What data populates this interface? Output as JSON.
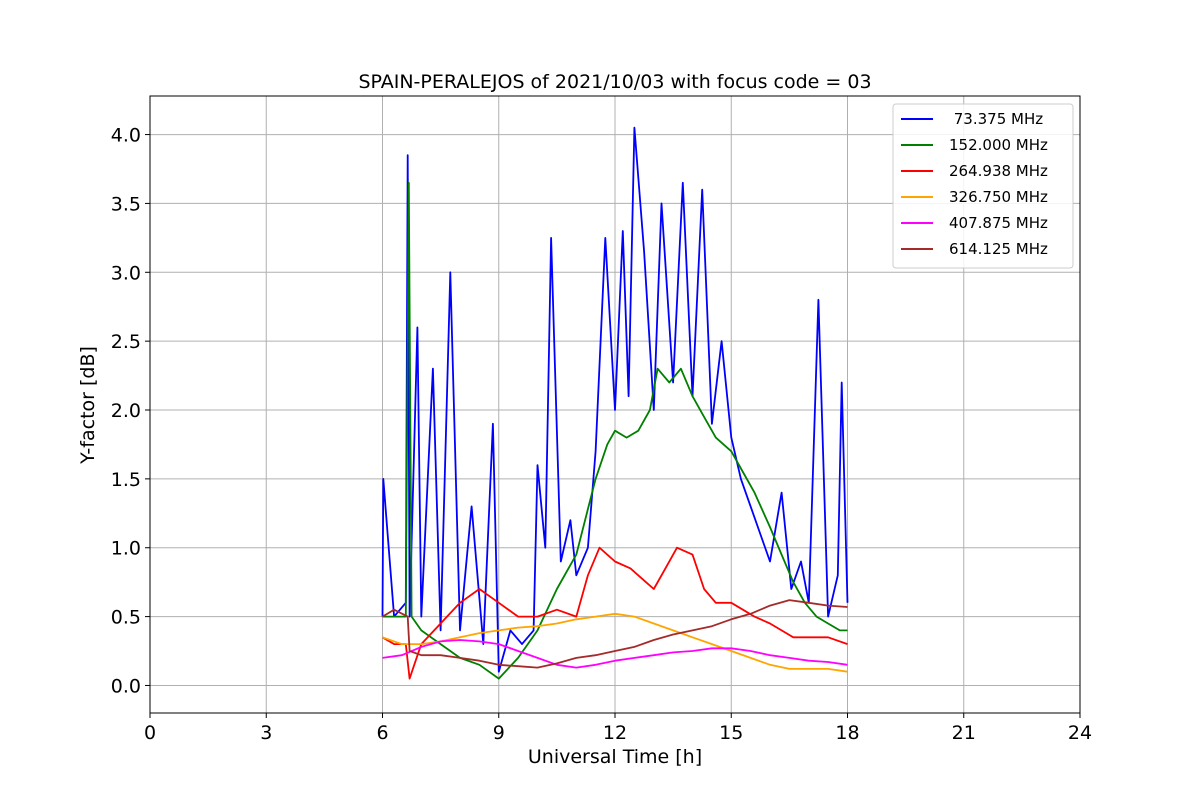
{
  "chart_data": {
    "type": "line",
    "title": "SPAIN-PERALEJOS of 2021/10/03 with focus code = 03",
    "xlabel": "Universal Time [h]",
    "ylabel": "Y-factor [dB]",
    "xlim": [
      0,
      24
    ],
    "ylim": [
      -0.2,
      4.28
    ],
    "xticks": [
      0,
      3,
      6,
      9,
      12,
      15,
      18,
      21,
      24
    ],
    "xtick_labels": [
      "0",
      "3",
      "6",
      "9",
      "12",
      "15",
      "18",
      "21",
      "24"
    ],
    "yticks": [
      0.0,
      0.5,
      1.0,
      1.5,
      2.0,
      2.5,
      3.0,
      3.5,
      4.0
    ],
    "ytick_labels": [
      "0.0",
      "0.5",
      "1.0",
      "1.5",
      "2.0",
      "2.5",
      "3.0",
      "3.5",
      "4.0"
    ],
    "grid": true,
    "legend_position": "top-right",
    "series": [
      {
        "name": " 73.375 MHz",
        "color": "#0000ff",
        "x": [
          6.0,
          6.02,
          6.3,
          6.6,
          6.65,
          6.7,
          6.9,
          7.0,
          7.3,
          7.5,
          7.75,
          8.0,
          8.3,
          8.6,
          8.85,
          9.0,
          9.3,
          9.6,
          9.9,
          10.0,
          10.2,
          10.35,
          10.6,
          10.85,
          11.0,
          11.3,
          11.5,
          11.75,
          12.0,
          12.2,
          12.35,
          12.5,
          12.75,
          13.0,
          13.2,
          13.5,
          13.75,
          14.0,
          14.25,
          14.5,
          14.75,
          15.0,
          15.25,
          15.5,
          15.75,
          16.0,
          16.3,
          16.55,
          16.8,
          17.0,
          17.25,
          17.5,
          17.75,
          17.85,
          18.0
        ],
        "y": [
          0.5,
          1.5,
          0.5,
          0.6,
          3.85,
          0.5,
          2.6,
          0.5,
          2.3,
          0.4,
          3.0,
          0.4,
          1.3,
          0.3,
          1.9,
          0.1,
          0.4,
          0.3,
          0.4,
          1.6,
          1.0,
          3.25,
          0.9,
          1.2,
          0.8,
          1.0,
          1.7,
          3.25,
          2.0,
          3.3,
          2.1,
          4.05,
          3.15,
          2.0,
          3.5,
          2.2,
          3.65,
          2.1,
          3.6,
          1.9,
          2.5,
          1.8,
          1.5,
          1.3,
          1.1,
          0.9,
          1.4,
          0.7,
          0.9,
          0.6,
          2.8,
          0.5,
          0.8,
          2.2,
          0.6
        ]
      },
      {
        "name": "152.000 MHz",
        "color": "#008000",
        "x": [
          6.0,
          6.3,
          6.6,
          6.68,
          6.75,
          7.0,
          7.5,
          8.0,
          8.5,
          9.0,
          9.5,
          10.0,
          10.5,
          11.0,
          11.5,
          11.8,
          12.0,
          12.3,
          12.6,
          12.9,
          13.1,
          13.4,
          13.7,
          14.0,
          14.3,
          14.6,
          15.0,
          15.3,
          15.6,
          16.0,
          16.3,
          16.6,
          16.9,
          17.2,
          17.5,
          17.8,
          18.0
        ],
        "y": [
          0.5,
          0.5,
          0.5,
          3.65,
          0.5,
          0.4,
          0.3,
          0.2,
          0.15,
          0.05,
          0.2,
          0.4,
          0.7,
          0.95,
          1.5,
          1.75,
          1.85,
          1.8,
          1.85,
          2.0,
          2.3,
          2.2,
          2.3,
          2.1,
          1.95,
          1.8,
          1.7,
          1.55,
          1.4,
          1.15,
          0.95,
          0.75,
          0.6,
          0.5,
          0.45,
          0.4,
          0.4
        ]
      },
      {
        "name": "264.938 MHz",
        "color": "#ff0000",
        "x": [
          6.0,
          6.3,
          6.6,
          6.7,
          7.0,
          7.5,
          8.0,
          8.5,
          9.0,
          9.5,
          10.0,
          10.5,
          11.0,
          11.3,
          11.6,
          12.0,
          12.4,
          12.8,
          13.0,
          13.3,
          13.6,
          14.0,
          14.3,
          14.6,
          15.0,
          15.3,
          15.6,
          16.0,
          16.3,
          16.6,
          17.0,
          17.5,
          18.0
        ],
        "y": [
          0.35,
          0.3,
          0.3,
          0.05,
          0.3,
          0.45,
          0.6,
          0.7,
          0.6,
          0.5,
          0.5,
          0.55,
          0.5,
          0.8,
          1.0,
          0.9,
          0.85,
          0.75,
          0.7,
          0.85,
          1.0,
          0.95,
          0.7,
          0.6,
          0.6,
          0.55,
          0.5,
          0.45,
          0.4,
          0.35,
          0.35,
          0.35,
          0.3
        ]
      },
      {
        "name": "326.750 MHz",
        "color": "#ffa500",
        "x": [
          6.0,
          6.5,
          7.0,
          7.5,
          8.0,
          8.5,
          9.0,
          9.5,
          10.0,
          10.5,
          11.0,
          11.5,
          12.0,
          12.5,
          13.0,
          13.5,
          14.0,
          14.5,
          15.0,
          15.5,
          16.0,
          16.5,
          17.0,
          17.5,
          18.0
        ],
        "y": [
          0.35,
          0.3,
          0.3,
          0.32,
          0.35,
          0.38,
          0.4,
          0.42,
          0.43,
          0.45,
          0.48,
          0.5,
          0.52,
          0.5,
          0.45,
          0.4,
          0.35,
          0.3,
          0.25,
          0.2,
          0.15,
          0.12,
          0.12,
          0.12,
          0.1
        ]
      },
      {
        "name": "407.875 MHz",
        "color": "#ff00ff",
        "x": [
          6.0,
          6.5,
          7.0,
          7.5,
          8.0,
          8.5,
          9.0,
          9.5,
          10.0,
          10.5,
          11.0,
          11.5,
          12.0,
          12.5,
          13.0,
          13.5,
          14.0,
          14.5,
          15.0,
          15.5,
          16.0,
          16.5,
          17.0,
          17.5,
          18.0
        ],
        "y": [
          0.2,
          0.22,
          0.28,
          0.32,
          0.33,
          0.32,
          0.3,
          0.25,
          0.2,
          0.15,
          0.13,
          0.15,
          0.18,
          0.2,
          0.22,
          0.24,
          0.25,
          0.27,
          0.27,
          0.25,
          0.22,
          0.2,
          0.18,
          0.17,
          0.15
        ]
      },
      {
        "name": "614.125 MHz",
        "color": "#a52a2a",
        "x": [
          6.0,
          6.3,
          6.65,
          6.7,
          7.0,
          7.5,
          8.0,
          8.5,
          9.0,
          9.5,
          10.0,
          10.5,
          11.0,
          11.5,
          12.0,
          12.5,
          13.0,
          13.5,
          14.0,
          14.5,
          15.0,
          15.5,
          16.0,
          16.5,
          17.0,
          17.5,
          18.0
        ],
        "y": [
          0.5,
          0.55,
          0.5,
          0.25,
          0.22,
          0.22,
          0.2,
          0.18,
          0.15,
          0.14,
          0.13,
          0.16,
          0.2,
          0.22,
          0.25,
          0.28,
          0.33,
          0.37,
          0.4,
          0.43,
          0.48,
          0.52,
          0.58,
          0.62,
          0.6,
          0.58,
          0.57
        ]
      }
    ]
  }
}
